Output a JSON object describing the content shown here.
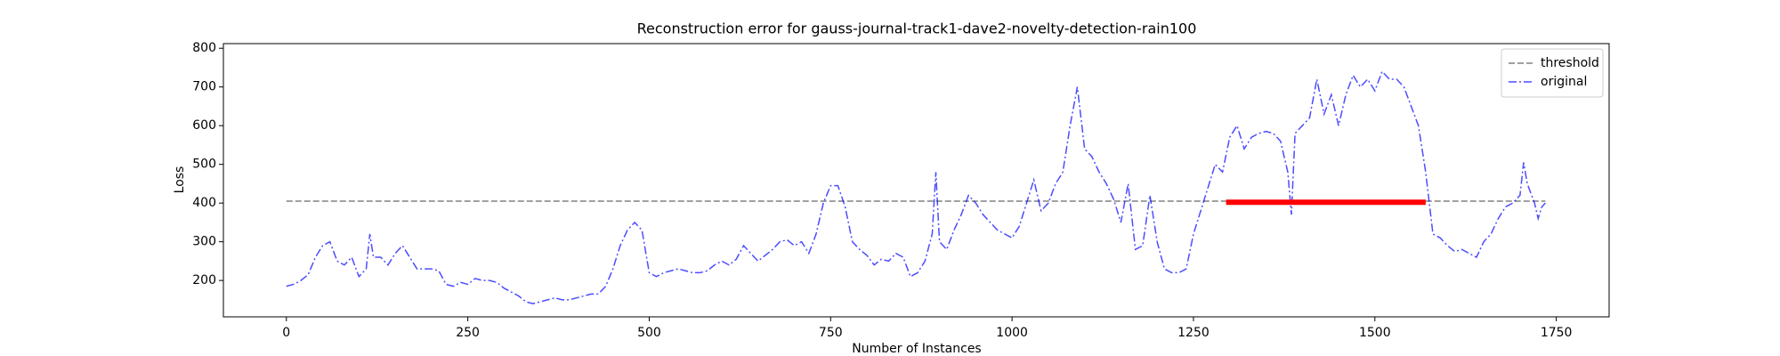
{
  "chart_data": {
    "type": "line",
    "title": "Reconstruction error for gauss-journal-track1-dave2-novelty-detection-rain100",
    "x_label": "Number of Instances",
    "y_label": "Loss",
    "xlim": [
      -86.8,
      1822.8
    ],
    "ylim": [
      106,
      812
    ],
    "xticks": [
      0,
      250,
      500,
      750,
      1000,
      1250,
      1500,
      1750
    ],
    "yticks": [
      200,
      300,
      400,
      500,
      600,
      700,
      800
    ],
    "grid": false,
    "legend": "upper right",
    "series": [
      {
        "name": "threshold",
        "color": "#808080",
        "linestyle": "--",
        "linewidth": 1.5,
        "opacity": 1,
        "x": [
          0,
          1735
        ],
        "values": [
          405,
          405
        ]
      },
      {
        "name": "original",
        "color": "#0000ff",
        "linestyle": "-.",
        "linewidth": 1.5,
        "opacity": 0.7,
        "x": [
          0,
          10,
          20,
          30,
          40,
          50,
          60,
          70,
          80,
          90,
          100,
          110,
          115,
          120,
          130,
          140,
          150,
          160,
          170,
          180,
          190,
          200,
          210,
          220,
          230,
          240,
          250,
          260,
          270,
          280,
          290,
          300,
          310,
          320,
          330,
          340,
          350,
          360,
          370,
          380,
          390,
          400,
          410,
          420,
          430,
          440,
          450,
          460,
          470,
          480,
          490,
          500,
          510,
          520,
          530,
          540,
          550,
          560,
          570,
          580,
          590,
          600,
          610,
          620,
          630,
          640,
          650,
          660,
          670,
          680,
          690,
          700,
          710,
          720,
          730,
          740,
          750,
          760,
          770,
          780,
          790,
          800,
          810,
          820,
          830,
          840,
          850,
          860,
          870,
          880,
          890,
          895,
          900,
          910,
          920,
          930,
          940,
          950,
          960,
          970,
          980,
          990,
          1000,
          1010,
          1020,
          1030,
          1040,
          1050,
          1060,
          1070,
          1080,
          1090,
          1100,
          1110,
          1120,
          1130,
          1140,
          1150,
          1160,
          1170,
          1180,
          1190,
          1200,
          1210,
          1220,
          1230,
          1240,
          1250,
          1260,
          1270,
          1280,
          1290,
          1300,
          1310,
          1320,
          1330,
          1340,
          1350,
          1360,
          1370,
          1380,
          1385,
          1390,
          1400,
          1410,
          1420,
          1430,
          1440,
          1450,
          1460,
          1470,
          1480,
          1490,
          1500,
          1510,
          1520,
          1530,
          1540,
          1550,
          1560,
          1570,
          1580,
          1590,
          1600,
          1610,
          1620,
          1630,
          1640,
          1650,
          1660,
          1670,
          1680,
          1690,
          1700,
          1705,
          1710,
          1720,
          1725,
          1730,
          1735
        ],
        "values": [
          185,
          190,
          200,
          215,
          260,
          290,
          300,
          250,
          240,
          260,
          210,
          230,
          320,
          260,
          260,
          240,
          270,
          290,
          260,
          230,
          230,
          230,
          225,
          190,
          185,
          195,
          190,
          205,
          200,
          200,
          195,
          180,
          170,
          160,
          145,
          140,
          145,
          150,
          155,
          150,
          150,
          155,
          160,
          165,
          165,
          185,
          230,
          290,
          330,
          350,
          330,
          220,
          210,
          220,
          225,
          230,
          225,
          220,
          220,
          225,
          240,
          250,
          240,
          255,
          290,
          270,
          250,
          265,
          280,
          300,
          305,
          290,
          300,
          270,
          320,
          400,
          445,
          445,
          390,
          300,
          280,
          265,
          240,
          255,
          250,
          270,
          260,
          210,
          220,
          250,
          320,
          480,
          300,
          280,
          330,
          370,
          420,
          400,
          370,
          350,
          330,
          320,
          310,
          340,
          400,
          460,
          380,
          400,
          450,
          480,
          600,
          700,
          540,
          520,
          480,
          450,
          410,
          350,
          450,
          280,
          290,
          420,
          300,
          230,
          220,
          220,
          230,
          320,
          380,
          440,
          500,
          480,
          570,
          600,
          540,
          570,
          580,
          585,
          580,
          560,
          480,
          370,
          580,
          600,
          620,
          720,
          630,
          680,
          600,
          680,
          730,
          700,
          720,
          690,
          740,
          720,
          720,
          700,
          650,
          600,
          480,
          320,
          310,
          290,
          275,
          280,
          270,
          260,
          300,
          320,
          360,
          390,
          400,
          420,
          505,
          450,
          400,
          360,
          390,
          400
        ]
      },
      {
        "color": "#ff0000",
        "linestyle": "-",
        "linewidth": 6,
        "opacity": 1,
        "x": [
          1295,
          1570
        ],
        "values": [
          402,
          402
        ]
      }
    ]
  }
}
